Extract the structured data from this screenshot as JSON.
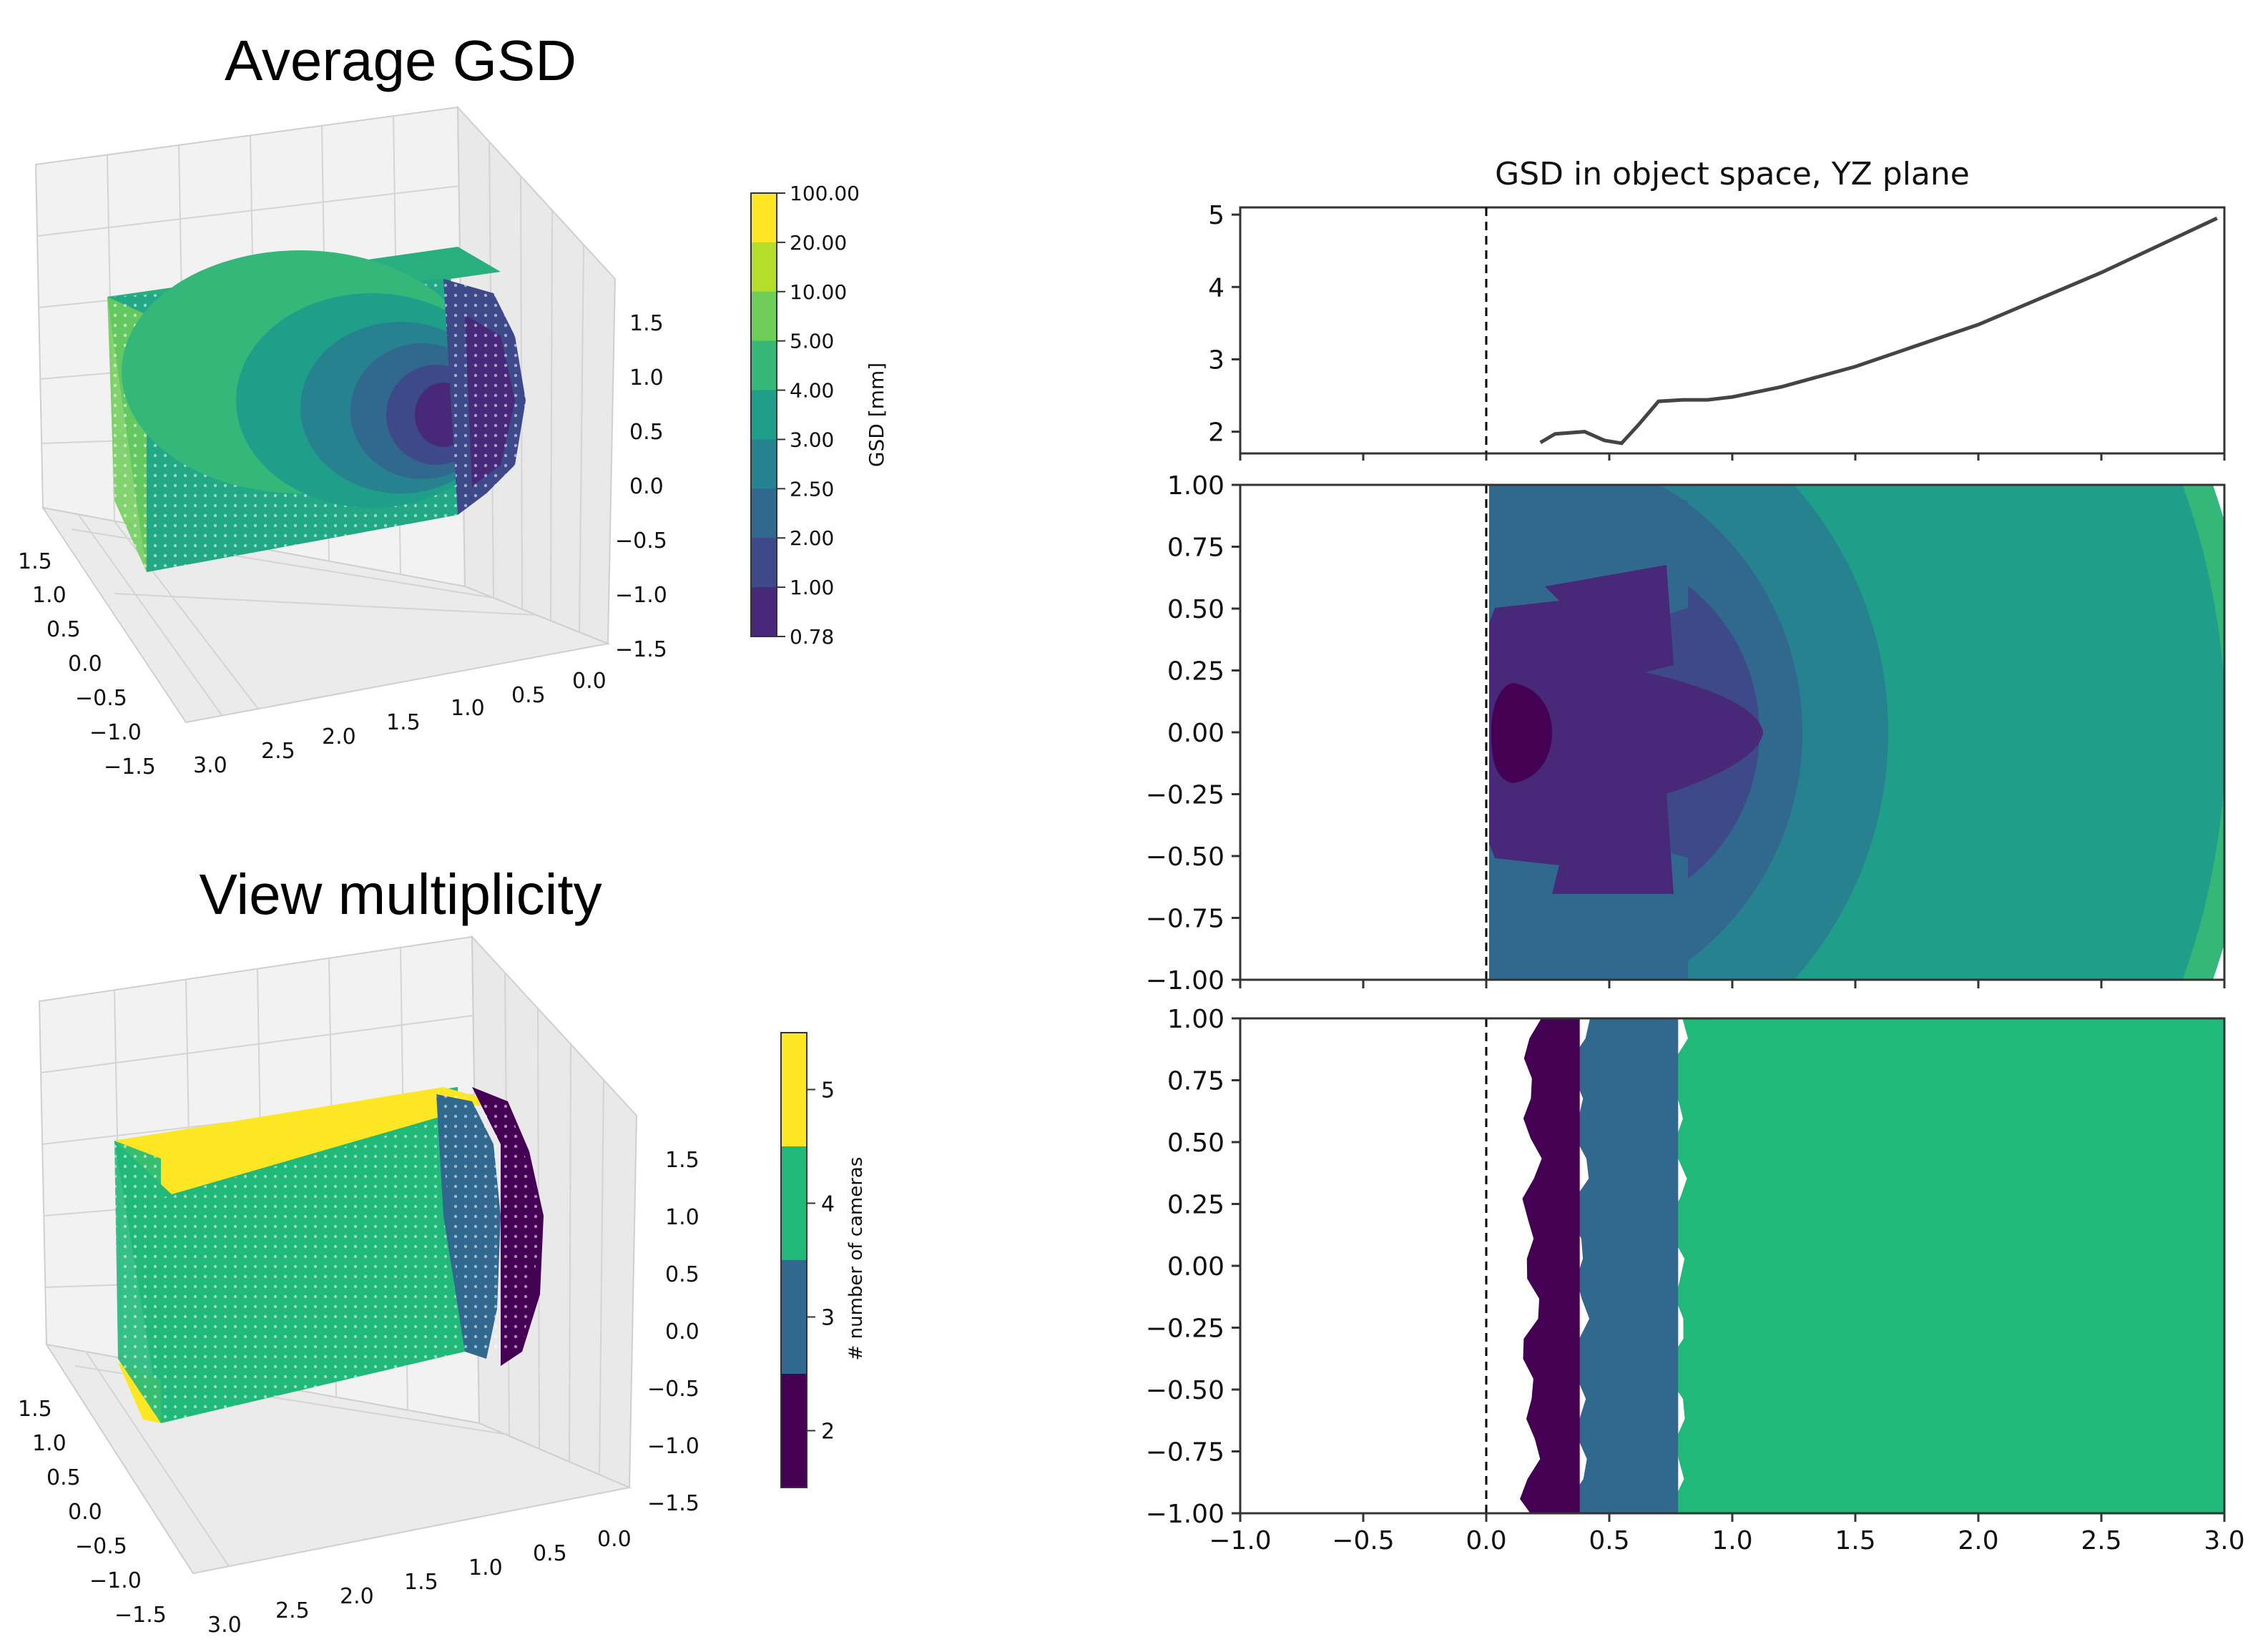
{
  "colors": {
    "viridis": [
      "#440154",
      "#482878",
      "#3e4989",
      "#31688e",
      "#26828e",
      "#1f9e89",
      "#35b779",
      "#6ece58",
      "#b5de2b",
      "#fde725"
    ],
    "cmap_mult": [
      "#440154",
      "#31688e",
      "#21b97a",
      "#fde725"
    ],
    "ref_line": "#000000",
    "curve": "#444444"
  },
  "panels": {
    "avg_gsd": {
      "title": "Average GSD",
      "colorbar_label": "GSD [mm]",
      "colorbar_ticks": [
        "100.00",
        "20.00",
        "10.00",
        "5.00",
        "4.00",
        "3.00",
        "2.50",
        "2.00",
        "1.00",
        "0.78"
      ],
      "z_ticks": [
        "1.5",
        "1.0",
        "0.5",
        "0.0",
        "−0.5",
        "−1.0",
        "−1.5"
      ],
      "y_ticks": [
        "1.5",
        "1.0",
        "0.5",
        "0.0",
        "−0.5",
        "−1.0",
        "−1.5"
      ],
      "x_ticks": [
        "3.0",
        "2.5",
        "2.0",
        "1.5",
        "1.0",
        "0.5",
        "0.0"
      ]
    },
    "view_mult": {
      "title": "View multiplicity",
      "colorbar_label": "# number of cameras",
      "colorbar_ticks": [
        "5",
        "4",
        "3",
        "2"
      ],
      "z_ticks": [
        "1.5",
        "1.0",
        "0.5",
        "0.0",
        "−0.5",
        "−1.0",
        "−1.5"
      ],
      "y_ticks": [
        "1.5",
        "1.0",
        "0.5",
        "0.0",
        "−0.5",
        "−1.0",
        "−1.5"
      ],
      "x_ticks": [
        "3.0",
        "2.5",
        "2.0",
        "1.5",
        "1.0",
        "0.5",
        "0.0"
      ]
    }
  },
  "chart_data": [
    {
      "type": "line",
      "title": "GSD in object space, YZ plane",
      "xlim": [
        -1.0,
        3.0
      ],
      "ylim": [
        1.7,
        5.1
      ],
      "yticks": [
        2,
        3,
        4,
        5
      ],
      "ytick_labels": [
        "2",
        "3",
        "4",
        "5"
      ],
      "ref_line_x": 0.0,
      "x": [
        0.22,
        0.28,
        0.4,
        0.48,
        0.55,
        0.62,
        0.7,
        0.8,
        0.9,
        1.0,
        1.2,
        1.5,
        2.0,
        2.5,
        2.97
      ],
      "y": [
        1.85,
        1.97,
        2.0,
        1.88,
        1.84,
        2.1,
        2.42,
        2.44,
        2.44,
        2.48,
        2.62,
        2.9,
        3.48,
        4.2,
        4.95
      ]
    },
    {
      "type": "heatmap",
      "xlim": [
        -1.0,
        3.0
      ],
      "ylim": [
        -1.0,
        1.0
      ],
      "yticks": [
        1.0,
        0.75,
        0.5,
        0.25,
        0.0,
        -0.25,
        -0.5,
        -0.75,
        -1.0
      ],
      "ytick_labels": [
        "1.00",
        "0.75",
        "0.50",
        "0.25",
        "0.00",
        "−0.25",
        "−0.50",
        "−0.75",
        "−1.00"
      ],
      "ref_line_x": 0.0
    },
    {
      "type": "heatmap",
      "xlim": [
        -1.0,
        3.0
      ],
      "ylim": [
        -1.0,
        1.0
      ],
      "xticks": [
        -1.0,
        -0.5,
        0.0,
        0.5,
        1.0,
        1.5,
        2.0,
        2.5,
        3.0
      ],
      "xtick_labels": [
        "−1.0",
        "−0.5",
        "0.0",
        "0.5",
        "1.0",
        "1.5",
        "2.0",
        "2.5",
        "3.0"
      ],
      "yticks": [
        1.0,
        0.75,
        0.5,
        0.25,
        0.0,
        -0.25,
        -0.5,
        -0.75,
        -1.0
      ],
      "ytick_labels": [
        "1.00",
        "0.75",
        "0.50",
        "0.25",
        "0.00",
        "−0.25",
        "−0.50",
        "−0.75",
        "−1.00"
      ],
      "ref_line_x": 0.0,
      "bands": [
        {
          "x0": 0.18,
          "x1": 0.38,
          "cameras": 2
        },
        {
          "x0": 0.38,
          "x1": 0.78,
          "cameras": 3
        },
        {
          "x0": 0.78,
          "x1": 3.0,
          "cameras": 4
        }
      ]
    }
  ]
}
